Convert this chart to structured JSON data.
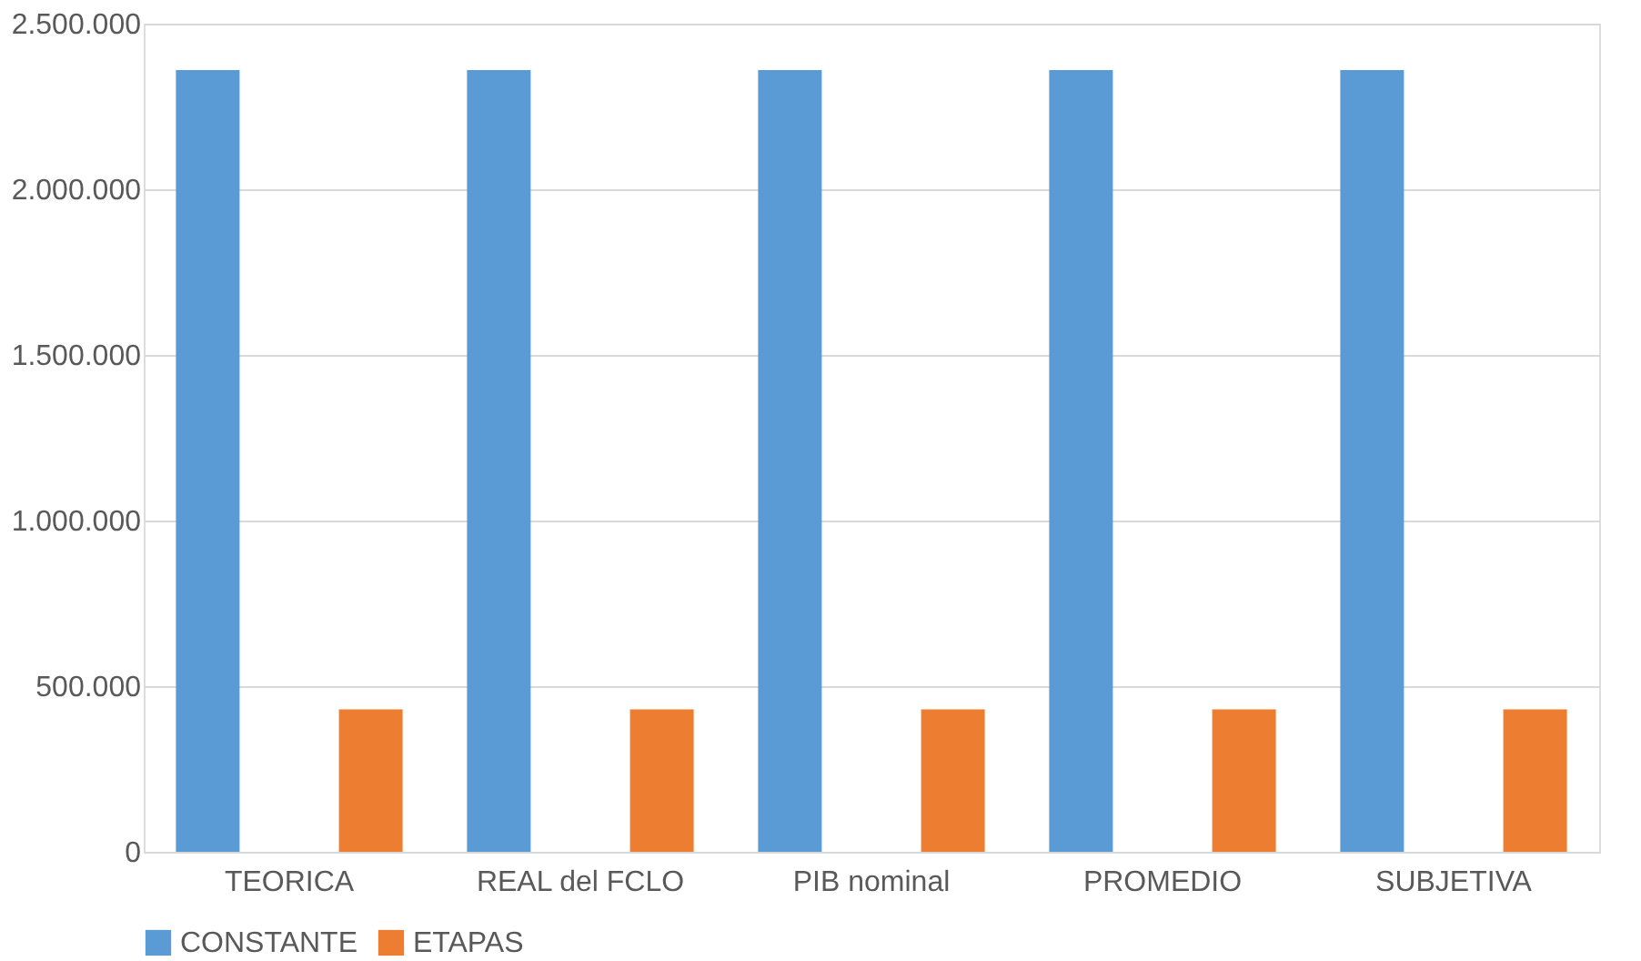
{
  "chart_data": {
    "type": "bar",
    "categories": [
      "TEORICA",
      "REAL del FCLO",
      "PIB nominal",
      "PROMEDIO",
      "SUBJETIVA"
    ],
    "series": [
      {
        "name": "CONSTANTE",
        "color": "#5b9bd5",
        "values": [
          2360000,
          2360000,
          2360000,
          2360000,
          2360000
        ]
      },
      {
        "name": "ETAPAS",
        "color": "#ed7d31",
        "values": [
          430000,
          430000,
          430000,
          430000,
          430000
        ]
      }
    ],
    "ylim": [
      0,
      2500000
    ],
    "yticks": [
      0,
      {
        "value": 500000,
        "label": "500.000"
      },
      {
        "value": 1000000,
        "label": "1.000.000"
      },
      {
        "value": 1500000,
        "label": "1.500.000"
      },
      {
        "value": 2000000,
        "label": "2.000.000"
      },
      {
        "value": 2500000,
        "label": "2.500.000"
      }
    ],
    "grid": "y",
    "legend": "bottom"
  }
}
